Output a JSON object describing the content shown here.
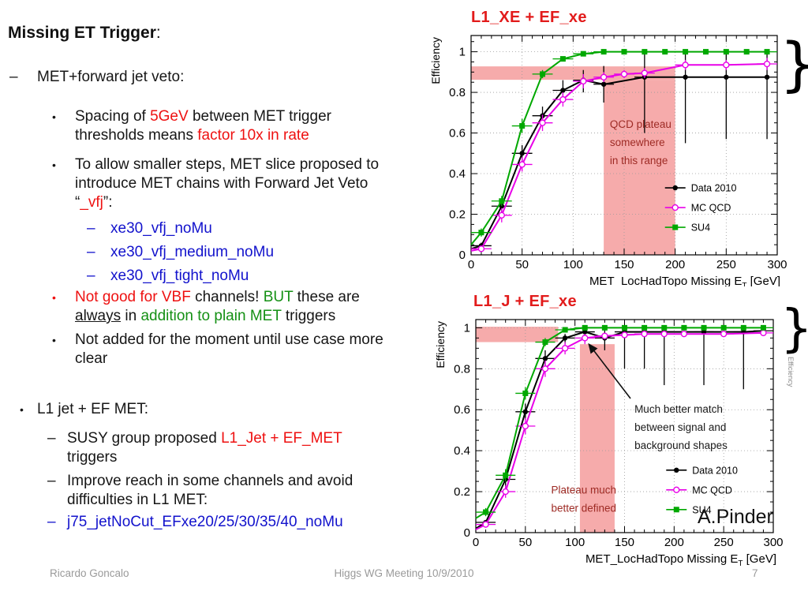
{
  "slide": {
    "title": [
      {
        "t": "Missing ET Trigger",
        "b": true
      },
      {
        "t": ":"
      }
    ],
    "bullets": [
      {
        "style": "dash1",
        "marker": "–",
        "segs": [
          {
            "t": "MET+forward jet veto:"
          }
        ]
      },
      {
        "style": "dot2",
        "marker": "•",
        "segs": [
          {
            "t": "Spacing of "
          },
          {
            "t": "5GeV",
            "c": "red"
          },
          {
            "t": " between MET trigger thresholds means "
          },
          {
            "t": "factor 10x in rate",
            "c": "red"
          }
        ]
      },
      {
        "style": "dot2",
        "marker": "•",
        "segs": [
          {
            "t": "To allow smaller steps, MET slice proposed to introduce MET chains with Forward Jet Veto “"
          },
          {
            "t": "_vfj",
            "c": "red"
          },
          {
            "t": "”:"
          }
        ]
      },
      {
        "style": "dash3",
        "marker": "–",
        "mc": "blue",
        "segs": [
          {
            "t": "xe30_vfj_noMu",
            "c": "blue"
          }
        ]
      },
      {
        "style": "dash3",
        "marker": "–",
        "mc": "blue",
        "segs": [
          {
            "t": "xe30_vfj_medium_noMu",
            "c": "blue"
          }
        ]
      },
      {
        "style": "dash3",
        "marker": "–",
        "mc": "blue",
        "segs": [
          {
            "t": "xe30_vfj_tight_noMu",
            "c": "blue"
          }
        ]
      },
      {
        "style": "dot2",
        "marker": "•",
        "mc": "red",
        "segs": [
          {
            "t": "Not good for VBF",
            "c": "red"
          },
          {
            "t": " channels! "
          },
          {
            "t": "BUT",
            "c": "green"
          },
          {
            "t": " these are "
          },
          {
            "t": "always",
            "u": true
          },
          {
            "t": " in "
          },
          {
            "t": "addition to plain MET",
            "c": "green"
          },
          {
            "t": " triggers"
          }
        ]
      },
      {
        "style": "dot2",
        "marker": "•",
        "segs": [
          {
            "t": "Not added for the moment until use case more clear"
          }
        ]
      },
      {
        "style": "dot1",
        "marker": "•",
        "segs": [
          {
            "t": "L1 jet + EF MET:"
          }
        ]
      },
      {
        "style": "dash2",
        "marker": "–",
        "segs": [
          {
            "t": "SUSY group proposed "
          },
          {
            "t": "L1_Jet + EF_MET",
            "c": "red"
          },
          {
            "t": " triggers"
          }
        ]
      },
      {
        "style": "dash2",
        "marker": "–",
        "segs": [
          {
            "t": "Improve reach in some channels and avoid difficulties in L1 MET:"
          }
        ]
      },
      {
        "style": "dash2",
        "marker": "–",
        "mc": "blue",
        "segs": [
          {
            "t": "j75_jetNoCut_EFxe20/25/30/35/40_noMu",
            "c": "blue"
          }
        ]
      }
    ],
    "credit": "A.Pinder",
    "brace": "}",
    "footer": {
      "author": "Ricardo Goncalo",
      "meeting": "Higgs WG Meeting 10/9/2010",
      "page": "7"
    }
  },
  "colors": {
    "accent_red": "#ee1111",
    "accent_blue": "#1212cc",
    "accent_green": "#149014",
    "plot_title_red": "#e21b1b",
    "annotation_dark_red": "#9e2b25",
    "band_pink": "#f28b8b",
    "series_black": "#000000",
    "series_magenta": "#e800e8",
    "series_green": "#00a800",
    "footer_gray": "#9a9a9a"
  },
  "chart_data": [
    {
      "type": "line",
      "title": "L1_XE + EF_xe",
      "xlabel": {
        "pre": "MET_LocHadTopo Missing E",
        "sub": "T",
        "post": " [GeV]"
      },
      "ylabel": "Efficiency",
      "x_range": [
        0,
        300
      ],
      "y_range": [
        0,
        1.08
      ],
      "x_major": 50,
      "x_minor": 10,
      "y_major": 0.2,
      "y_minor": 0.05,
      "x_ticks": [
        0,
        50,
        100,
        150,
        200,
        250,
        300
      ],
      "y_ticks": [
        0,
        0.2,
        0.4,
        0.6,
        0.8,
        1
      ],
      "grid": true,
      "band_color": "#f28b8b",
      "bands": [
        {
          "x0": 0,
          "x1": 200,
          "y0": 0.862,
          "y1": 0.928
        },
        {
          "x0": 130,
          "x1": 200,
          "y0": 0,
          "y1": 0.862
        }
      ],
      "legend": {
        "x": 190,
        "y": 0.33
      },
      "series": [
        {
          "name": "Data 2010",
          "color": "#000000",
          "marker": "circle",
          "xerr": 10,
          "start": [
            0,
            0.03
          ],
          "points": [
            [
              10,
              0.045,
              0.03,
              0.06
            ],
            [
              30,
              0.24,
              0.2,
              0.28
            ],
            [
              50,
              0.5,
              0.46,
              0.54
            ],
            [
              70,
              0.685,
              0.64,
              0.73
            ],
            [
              90,
              0.81,
              0.76,
              0.86
            ],
            [
              110,
              0.86,
              0.8,
              0.91
            ],
            [
              130,
              0.84,
              0.75,
              0.93
            ],
            [
              170,
              0.875,
              0.6,
              1
            ],
            [
              210,
              0.875,
              0.55,
              1
            ],
            [
              250,
              0.875,
              0.57,
              1
            ],
            [
              290,
              0.875,
              0.57,
              1
            ]
          ]
        },
        {
          "name": "MC QCD",
          "color": "#e800e8",
          "marker": "ocircle",
          "xerr": 10,
          "start": [
            0,
            0.02
          ],
          "points": [
            [
              10,
              0.03,
              0.02,
              0.04
            ],
            [
              30,
              0.195,
              0.16,
              0.23
            ],
            [
              50,
              0.445,
              0.41,
              0.48
            ],
            [
              70,
              0.65,
              0.61,
              0.69
            ],
            [
              90,
              0.765,
              0.73,
              0.8
            ],
            [
              110,
              0.855,
              0.82,
              0.89
            ],
            [
              130,
              0.875,
              0.85,
              0.9
            ],
            [
              150,
              0.89,
              0.87,
              0.91
            ],
            [
              170,
              0.895,
              0.87,
              0.92
            ],
            [
              210,
              0.935,
              0.91,
              0.96
            ],
            [
              250,
              0.935,
              0.91,
              0.96
            ],
            [
              290,
              0.94,
              0.91,
              0.97
            ]
          ]
        },
        {
          "name": "SU4",
          "color": "#00a800",
          "marker": "square",
          "xerr": 10,
          "start": [
            0,
            0.05
          ],
          "points": [
            [
              10,
              0.11,
              0.09,
              0.13
            ],
            [
              30,
              0.265,
              0.24,
              0.29
            ],
            [
              50,
              0.635,
              0.6,
              0.67
            ],
            [
              70,
              0.89,
              0.87,
              0.91
            ],
            [
              90,
              0.965
            ],
            [
              110,
              0.99
            ],
            [
              130,
              1
            ],
            [
              150,
              1
            ],
            [
              170,
              1
            ],
            [
              190,
              1
            ],
            [
              210,
              1
            ],
            [
              230,
              1
            ],
            [
              250,
              1
            ],
            [
              270,
              1
            ],
            [
              290,
              1
            ]
          ]
        }
      ],
      "texts": [
        {
          "lines": [
            "QCD plateau",
            "somewhere",
            "in this range"
          ],
          "x": 136,
          "y": 0.625,
          "color": "#9e2b25"
        }
      ],
      "arrows": []
    },
    {
      "type": "line",
      "title": "L1_J + EF_xe",
      "xlabel": {
        "pre": "MET_LocHadTopo Missing E",
        "sub": "T",
        "post": " [GeV]"
      },
      "ylabel": "Efficiency",
      "ylabel_right": "Efficiency",
      "x_range": [
        0,
        300
      ],
      "y_range": [
        0,
        1.04
      ],
      "x_major": 50,
      "x_minor": 10,
      "y_major": 0.2,
      "y_minor": 0.05,
      "x_ticks": [
        0,
        50,
        100,
        150,
        200,
        250,
        300
      ],
      "y_ticks": [
        0,
        0.2,
        0.4,
        0.6,
        0.8,
        1
      ],
      "grid": true,
      "band_color": "#f28b8b",
      "bands": [
        {
          "x0": 0,
          "x1": 83,
          "y0": 0.93,
          "y1": 1.005
        },
        {
          "x0": 105,
          "x1": 140,
          "y0": 0,
          "y1": 0.92
        }
      ],
      "legend": {
        "x": 192,
        "y": 0.305
      },
      "series": [
        {
          "name": "Data 2010",
          "color": "#000000",
          "marker": "circle",
          "xerr": 10,
          "start": [
            0,
            0.02
          ],
          "points": [
            [
              10,
              0.05,
              0.04,
              0.06
            ],
            [
              30,
              0.26,
              0.22,
              0.3
            ],
            [
              50,
              0.59,
              0.55,
              0.63
            ],
            [
              70,
              0.85,
              0.81,
              0.89
            ],
            [
              90,
              0.95,
              0.92,
              0.97
            ],
            [
              110,
              0.98,
              0.95,
              1
            ],
            [
              130,
              0.95,
              0.89,
              0.99
            ],
            [
              150,
              0.98,
              0.8,
              1
            ],
            [
              170,
              0.98,
              0.8,
              1
            ],
            [
              190,
              0.98,
              0.72,
              1
            ],
            [
              230,
              0.98,
              0.72,
              1
            ],
            [
              270,
              0.98,
              0.7,
              1
            ],
            [
              290,
              0.985
            ]
          ]
        },
        {
          "name": "MC QCD",
          "color": "#e800e8",
          "marker": "ocircle",
          "xerr": 10,
          "start": [
            0,
            0.015
          ],
          "points": [
            [
              10,
              0.04,
              0.03,
              0.05
            ],
            [
              30,
              0.2,
              0.17,
              0.23
            ],
            [
              50,
              0.52,
              0.48,
              0.56
            ],
            [
              70,
              0.8,
              0.76,
              0.84
            ],
            [
              90,
              0.9,
              0.87,
              0.93
            ],
            [
              110,
              0.95,
              0.92,
              0.97
            ],
            [
              130,
              0.96
            ],
            [
              150,
              0.965
            ],
            [
              170,
              0.97
            ],
            [
              190,
              0.97
            ],
            [
              210,
              0.97
            ],
            [
              250,
              0.97
            ],
            [
              290,
              0.975
            ]
          ]
        },
        {
          "name": "SU4",
          "color": "#00a800",
          "marker": "square",
          "xerr": 10,
          "start": [
            0,
            0.07
          ],
          "points": [
            [
              10,
              0.1,
              0.08,
              0.12
            ],
            [
              30,
              0.28,
              0.25,
              0.31
            ],
            [
              50,
              0.68,
              0.65,
              0.71
            ],
            [
              70,
              0.93,
              0.91,
              0.95
            ],
            [
              90,
              0.99
            ],
            [
              110,
              1
            ],
            [
              130,
              1
            ],
            [
              150,
              1
            ],
            [
              170,
              1
            ],
            [
              190,
              1
            ],
            [
              210,
              1
            ],
            [
              230,
              1
            ],
            [
              250,
              1
            ],
            [
              270,
              1
            ],
            [
              290,
              1
            ]
          ]
        }
      ],
      "texts": [
        {
          "lines": [
            "Much better match",
            "between signal and",
            "background shapes"
          ],
          "x": 160,
          "y": 0.585,
          "color": "#1a1a1a"
        },
        {
          "lines": [
            "Plateau much",
            "better defined"
          ],
          "x": 76,
          "y": 0.19,
          "color": "#9e2b25"
        }
      ],
      "arrows": [
        {
          "from": [
            156,
            0.655
          ],
          "to": [
            114,
            0.92
          ]
        }
      ]
    }
  ]
}
